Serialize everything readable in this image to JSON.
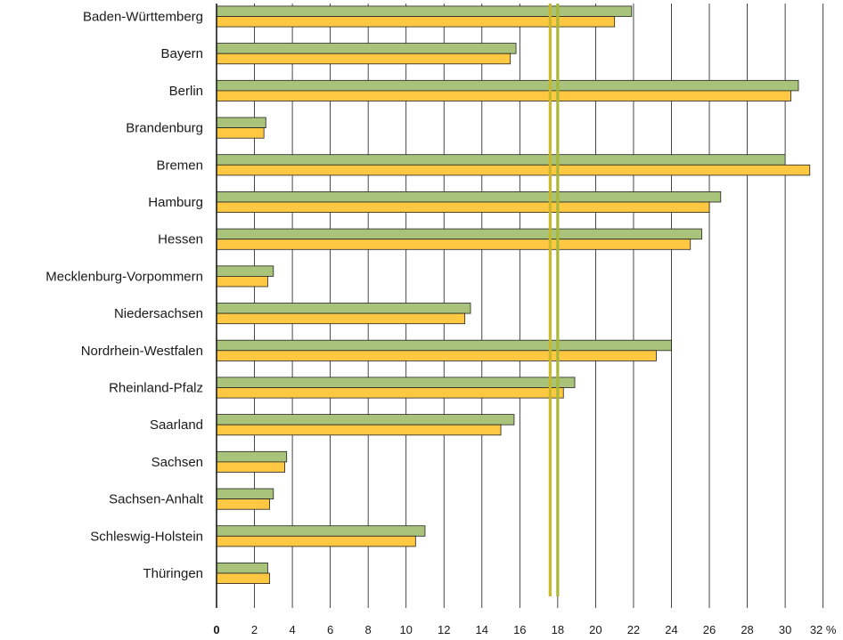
{
  "chart_data": {
    "type": "bar",
    "orientation": "horizontal",
    "categories": [
      "Baden-Württemberg",
      "Bayern",
      "Berlin",
      "Brandenburg",
      "Bremen",
      "Hamburg",
      "Hessen",
      "Mecklenburg-Vorpommern",
      "Niedersachsen",
      "Nordrhein-Westfalen",
      "Rheinland-Pfalz",
      "Saarland",
      "Sachsen",
      "Sachsen-Anhalt",
      "Schleswig-Holstein",
      "Thüringen"
    ],
    "series": [
      {
        "color": "#a9c47a",
        "values": [
          21.9,
          15.8,
          30.7,
          2.6,
          30.0,
          26.6,
          25.6,
          3.0,
          13.4,
          24.0,
          18.9,
          15.7,
          3.7,
          3.0,
          11.0,
          2.7
        ]
      },
      {
        "color": "#ffc843",
        "values": [
          21.0,
          15.5,
          30.3,
          2.5,
          31.3,
          26.0,
          25.0,
          2.7,
          13.1,
          23.2,
          18.3,
          15.0,
          3.6,
          2.8,
          10.5,
          2.8
        ]
      }
    ],
    "reference_lines": [
      {
        "value": 17.6,
        "color": "#c9b92a"
      },
      {
        "value": 18.0,
        "color": "#a9b83a"
      }
    ],
    "xlim": [
      0,
      32
    ],
    "xticks": [
      "0",
      "2",
      "4",
      "6",
      "8",
      "10",
      "12",
      "14",
      "16",
      "18",
      "20",
      "22",
      "24",
      "26",
      "28",
      "30",
      "32 %"
    ],
    "grid": true,
    "legend": false
  }
}
